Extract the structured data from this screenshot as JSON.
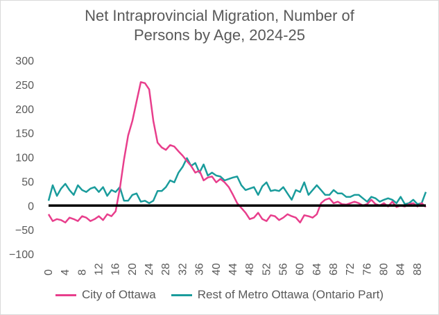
{
  "chart_data": {
    "type": "line",
    "title_lines": [
      "Net Intraprovincial Migration, Number of",
      "Persons by Age, 2024-25"
    ],
    "xlabel": "",
    "ylabel": "",
    "x_range": [
      0,
      90
    ],
    "ylim": [
      -100,
      300
    ],
    "y_ticks": [
      -100,
      -50,
      0,
      50,
      100,
      150,
      200,
      250,
      300
    ],
    "x_ticks": [
      0,
      4,
      8,
      12,
      16,
      20,
      24,
      28,
      32,
      36,
      40,
      44,
      48,
      52,
      56,
      60,
      64,
      68,
      72,
      76,
      80,
      84,
      88
    ],
    "grid": false,
    "zero_line": true,
    "legend_position": "bottom",
    "series": [
      {
        "name": "City of Ottawa",
        "color": "#e83e8c",
        "values": [
          -18,
          -32,
          -28,
          -30,
          -35,
          -25,
          -28,
          -32,
          -22,
          -25,
          -32,
          -28,
          -22,
          -30,
          -18,
          -22,
          -12,
          35,
          95,
          145,
          175,
          215,
          255,
          253,
          240,
          175,
          130,
          120,
          115,
          125,
          122,
          112,
          103,
          92,
          82,
          68,
          72,
          52,
          58,
          60,
          48,
          55,
          48,
          38,
          22,
          5,
          -5,
          -15,
          -28,
          -25,
          -15,
          -28,
          -32,
          -20,
          -22,
          -30,
          -25,
          -18,
          -22,
          -25,
          -35,
          -20,
          -22,
          -25,
          -18,
          5,
          12,
          15,
          5,
          8,
          3,
          2,
          5,
          8,
          5,
          0,
          3,
          12,
          3,
          0,
          5,
          -2,
          8,
          -3,
          0,
          -2,
          3,
          5,
          -2,
          5,
          -3
        ]
      },
      {
        "name": "Rest of Metro Ottawa (Ontario Part)",
        "color": "#1a9c9c",
        "values": [
          10,
          42,
          20,
          35,
          45,
          32,
          22,
          42,
          32,
          28,
          35,
          38,
          28,
          38,
          20,
          32,
          28,
          38,
          10,
          10,
          22,
          25,
          8,
          10,
          5,
          10,
          30,
          30,
          38,
          52,
          48,
          68,
          80,
          98,
          82,
          88,
          68,
          85,
          62,
          68,
          62,
          60,
          52,
          55,
          58,
          60,
          42,
          32,
          35,
          38,
          22,
          40,
          48,
          30,
          32,
          30,
          38,
          25,
          12,
          32,
          28,
          48,
          22,
          32,
          42,
          32,
          22,
          22,
          32,
          25,
          25,
          18,
          18,
          22,
          22,
          15,
          8,
          18,
          15,
          8,
          12,
          15,
          12,
          5,
          18,
          3,
          5,
          12,
          3,
          5,
          28
        ]
      }
    ]
  }
}
